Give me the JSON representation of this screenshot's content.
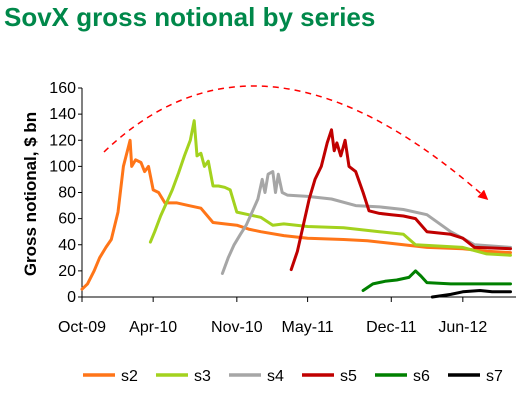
{
  "title": "SovX gross notional by series",
  "colors": {
    "title": "#00884a",
    "trend_arrow": "#ff0000"
  },
  "chart_data": {
    "type": "line",
    "title": "SovX gross notional by series",
    "xlabel": "",
    "ylabel": "Gross notional, $ bn",
    "ylim": [
      0,
      160
    ],
    "yticks": [
      "0",
      "20",
      "40",
      "60",
      "80",
      "100",
      "120",
      "140",
      "160"
    ],
    "xlim": [
      "2009-10-01",
      "2012-10-15"
    ],
    "xticks": [
      {
        "date": "2009-10-01",
        "label": "Oct-09"
      },
      {
        "date": "2010-04-01",
        "label": "Apr-10"
      },
      {
        "date": "2010-11-01",
        "label": "Nov-10"
      },
      {
        "date": "2011-05-01",
        "label": "May-11"
      },
      {
        "date": "2011-12-01",
        "label": "Dec-11"
      },
      {
        "date": "2012-06-01",
        "label": "Jun-12"
      }
    ],
    "grid": false,
    "legend": "bottom",
    "annotation": "red dashed trend arrow arching from Oct-09 to Sep-12",
    "series": [
      {
        "name": "s2",
        "color": "#ff7518",
        "points": [
          [
            "2009-10-01",
            6
          ],
          [
            "2009-10-15",
            10
          ],
          [
            "2009-11-01",
            20
          ],
          [
            "2009-11-15",
            30
          ],
          [
            "2009-12-01",
            38
          ],
          [
            "2009-12-15",
            44
          ],
          [
            "2010-01-01",
            65
          ],
          [
            "2010-01-15",
            100
          ],
          [
            "2010-02-01",
            120
          ],
          [
            "2010-02-05",
            100
          ],
          [
            "2010-02-15",
            105
          ],
          [
            "2010-03-01",
            103
          ],
          [
            "2010-03-10",
            96
          ],
          [
            "2010-03-20",
            100
          ],
          [
            "2010-04-01",
            82
          ],
          [
            "2010-04-15",
            80
          ],
          [
            "2010-05-01",
            72
          ],
          [
            "2010-05-15",
            72
          ],
          [
            "2010-06-01",
            72
          ],
          [
            "2010-07-01",
            70
          ],
          [
            "2010-08-01",
            68
          ],
          [
            "2010-09-01",
            57
          ],
          [
            "2010-10-01",
            56
          ],
          [
            "2010-11-01",
            55
          ],
          [
            "2010-12-01",
            52
          ],
          [
            "2011-01-01",
            50
          ],
          [
            "2011-03-01",
            47
          ],
          [
            "2011-05-01",
            45
          ],
          [
            "2011-08-01",
            44
          ],
          [
            "2011-10-01",
            43
          ],
          [
            "2011-12-01",
            41
          ],
          [
            "2012-03-01",
            38
          ],
          [
            "2012-06-01",
            37
          ],
          [
            "2012-08-01",
            35
          ],
          [
            "2012-10-01",
            34
          ]
        ]
      },
      {
        "name": "s3",
        "color": "#a3d21e",
        "points": [
          [
            "2010-03-25",
            42
          ],
          [
            "2010-04-05",
            50
          ],
          [
            "2010-04-20",
            62
          ],
          [
            "2010-05-05",
            72
          ],
          [
            "2010-05-20",
            82
          ],
          [
            "2010-06-05",
            95
          ],
          [
            "2010-06-20",
            108
          ],
          [
            "2010-07-05",
            120
          ],
          [
            "2010-07-15",
            135
          ],
          [
            "2010-07-22",
            108
          ],
          [
            "2010-08-01",
            110
          ],
          [
            "2010-08-10",
            100
          ],
          [
            "2010-08-20",
            104
          ],
          [
            "2010-09-01",
            85
          ],
          [
            "2010-09-15",
            85
          ],
          [
            "2010-10-01",
            84
          ],
          [
            "2010-10-15",
            82
          ],
          [
            "2010-11-01",
            65
          ],
          [
            "2010-12-01",
            63
          ],
          [
            "2011-01-01",
            61
          ],
          [
            "2011-02-01",
            55
          ],
          [
            "2011-03-01",
            56
          ],
          [
            "2011-05-01",
            54
          ],
          [
            "2011-08-01",
            53
          ],
          [
            "2011-11-01",
            50
          ],
          [
            "2012-01-01",
            48
          ],
          [
            "2012-02-01",
            40
          ],
          [
            "2012-06-01",
            38
          ],
          [
            "2012-08-01",
            33
          ],
          [
            "2012-10-01",
            32
          ]
        ]
      },
      {
        "name": "s4",
        "color": "#a6a6a6",
        "points": [
          [
            "2010-09-25",
            18
          ],
          [
            "2010-10-10",
            30
          ],
          [
            "2010-10-25",
            40
          ],
          [
            "2010-11-10",
            48
          ],
          [
            "2010-11-25",
            55
          ],
          [
            "2010-12-10",
            65
          ],
          [
            "2010-12-25",
            75
          ],
          [
            "2011-01-05",
            90
          ],
          [
            "2011-01-12",
            80
          ],
          [
            "2011-01-20",
            94
          ],
          [
            "2011-02-01",
            96
          ],
          [
            "2011-02-08",
            80
          ],
          [
            "2011-02-15",
            94
          ],
          [
            "2011-02-25",
            80
          ],
          [
            "2011-03-10",
            78
          ],
          [
            "2011-05-01",
            77
          ],
          [
            "2011-07-01",
            75
          ],
          [
            "2011-09-01",
            70
          ],
          [
            "2011-11-01",
            69
          ],
          [
            "2012-01-01",
            67
          ],
          [
            "2012-03-01",
            63
          ],
          [
            "2012-05-01",
            50
          ],
          [
            "2012-07-01",
            40
          ],
          [
            "2012-10-01",
            38
          ]
        ]
      },
      {
        "name": "s5",
        "color": "#c00000",
        "points": [
          [
            "2011-03-20",
            21
          ],
          [
            "2011-04-05",
            35
          ],
          [
            "2011-04-20",
            55
          ],
          [
            "2011-05-05",
            75
          ],
          [
            "2011-05-20",
            90
          ],
          [
            "2011-06-05",
            100
          ],
          [
            "2011-06-20",
            118
          ],
          [
            "2011-07-01",
            128
          ],
          [
            "2011-07-08",
            112
          ],
          [
            "2011-07-15",
            118
          ],
          [
            "2011-07-25",
            108
          ],
          [
            "2011-08-05",
            120
          ],
          [
            "2011-08-15",
            100
          ],
          [
            "2011-09-01",
            96
          ],
          [
            "2011-09-20",
            80
          ],
          [
            "2011-10-05",
            66
          ],
          [
            "2011-11-01",
            64
          ],
          [
            "2011-12-01",
            63
          ],
          [
            "2012-01-01",
            62
          ],
          [
            "2012-02-01",
            60
          ],
          [
            "2012-03-01",
            50
          ],
          [
            "2012-05-01",
            48
          ],
          [
            "2012-06-01",
            45
          ],
          [
            "2012-07-01",
            38
          ],
          [
            "2012-10-01",
            37
          ]
        ]
      },
      {
        "name": "s6",
        "color": "#008000",
        "points": [
          [
            "2011-09-20",
            5
          ],
          [
            "2011-10-15",
            10
          ],
          [
            "2011-11-15",
            12
          ],
          [
            "2011-12-15",
            13
          ],
          [
            "2012-01-15",
            15
          ],
          [
            "2012-02-01",
            20
          ],
          [
            "2012-02-15",
            16
          ],
          [
            "2012-03-01",
            11
          ],
          [
            "2012-05-01",
            10
          ],
          [
            "2012-08-01",
            10
          ],
          [
            "2012-10-01",
            10
          ]
        ]
      },
      {
        "name": "s7",
        "color": "#000000",
        "points": [
          [
            "2012-03-15",
            0
          ],
          [
            "2012-05-01",
            2
          ],
          [
            "2012-06-01",
            4
          ],
          [
            "2012-07-15",
            5
          ],
          [
            "2012-08-15",
            4
          ],
          [
            "2012-10-01",
            4
          ]
        ]
      }
    ]
  }
}
